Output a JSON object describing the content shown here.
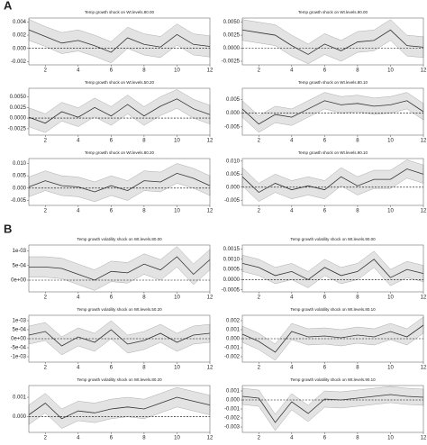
{
  "section_labels": [
    "A",
    "B"
  ],
  "chart_data": [
    {
      "type": "line",
      "title": "Temp growth shock on Wt.levels.80.00",
      "x": [
        1,
        2,
        3,
        4,
        5,
        6,
        7,
        8,
        9,
        10,
        11,
        12
      ],
      "values": [
        0.0028,
        0.0018,
        0.0008,
        0.0012,
        0.0004,
        -0.0006,
        0.0016,
        0.0006,
        0.0002,
        0.0021,
        0.0006,
        0.0003
      ],
      "lower": [
        0.0012,
        0.0003,
        -0.0008,
        -0.0004,
        -0.0012,
        -0.0022,
        0,
        -0.001,
        -0.0014,
        0.0005,
        -0.001,
        -0.0013
      ],
      "upper": [
        0.0044,
        0.0033,
        0.0024,
        0.0028,
        0.002,
        0.001,
        0.0032,
        0.0022,
        0.0018,
        0.0037,
        0.0022,
        0.0019
      ],
      "xlim": [
        1,
        12
      ],
      "xticks": [
        2,
        4,
        6,
        8,
        10,
        12
      ],
      "ylim": [
        -0.0025,
        0.0046
      ],
      "yticks": [
        {
          "value": -0.002,
          "label": "-0.002"
        },
        {
          "value": 0,
          "label": "0.000"
        },
        {
          "value": 0.002,
          "label": "0.002"
        },
        {
          "value": 0.004,
          "label": "0.004"
        }
      ],
      "reference_line": 0,
      "color": "#333333",
      "band_color": "#e3e3e3"
    },
    {
      "type": "line",
      "title": "Temp growth shock on Wt.levels.90.00",
      "x": [
        1,
        2,
        3,
        4,
        5,
        6,
        7,
        8,
        9,
        10,
        11,
        12
      ],
      "values": [
        0.0035,
        0.003,
        0.0025,
        0.0005,
        -0.0012,
        0.0008,
        -0.0005,
        0.0012,
        0.0015,
        0.0035,
        0.0005,
        0.0002
      ],
      "lower": [
        0.0015,
        0.001,
        0.0005,
        -0.0015,
        -0.003,
        -0.0012,
        -0.0025,
        -0.0008,
        -0.0005,
        0.0015,
        -0.0015,
        -0.0018
      ],
      "upper": [
        0.0055,
        0.005,
        0.0045,
        0.0025,
        0.0008,
        0.0028,
        0.0015,
        0.0032,
        0.0035,
        0.0055,
        0.0025,
        0.0022
      ],
      "xlim": [
        1,
        12
      ],
      "xticks": [
        2,
        4,
        6,
        8,
        10,
        12
      ],
      "ylim": [
        -0.0032,
        0.0058
      ],
      "yticks": [
        -0.0025,
        {
          "value": 0,
          "label": "0.0000"
        },
        0.0025,
        {
          "value": 0.005,
          "label": "0.0050"
        }
      ],
      "reference_line": 0,
      "color": "#333333",
      "band_color": "#e3e3e3"
    },
    {
      "type": "line",
      "title": "Temp growth shock on Wt.levels.50.20",
      "x": [
        1,
        2,
        3,
        4,
        5,
        6,
        7,
        8,
        9,
        10,
        11,
        12
      ],
      "values": [
        0.0002,
        -0.0012,
        0.0015,
        0.0002,
        0.0025,
        0.0005,
        0.0032,
        0.0005,
        0.0028,
        0.0045,
        0.0022,
        0.0008
      ],
      "lower": [
        -0.002,
        -0.0034,
        -0.0007,
        -0.002,
        0.0003,
        -0.0017,
        0.001,
        -0.0017,
        0.0006,
        0.0023,
        0,
        -0.0014
      ],
      "upper": [
        0.0024,
        0.001,
        0.0037,
        0.0024,
        0.0047,
        0.0027,
        0.0054,
        0.0027,
        0.005,
        0.0067,
        0.0044,
        0.003
      ],
      "xlim": [
        1,
        12
      ],
      "xticks": [
        2,
        4,
        6,
        8,
        10,
        12
      ],
      "ylim": [
        -0.004,
        0.007
      ],
      "yticks": [
        -0.0025,
        {
          "value": 0,
          "label": "0.0000"
        },
        0.0025,
        {
          "value": 0.005,
          "label": "0.0050"
        }
      ],
      "reference_line": 0,
      "color": "#333333",
      "band_color": "#e3e3e3"
    },
    {
      "type": "line",
      "title": "Temp growth shock on Wt.levels.80.10",
      "x": [
        1,
        2,
        3,
        4,
        5,
        6,
        7,
        8,
        9,
        10,
        11,
        12
      ],
      "values": [
        0.0015,
        -0.004,
        -0.0005,
        -0.0015,
        0.0015,
        0.0045,
        0.003,
        0.0035,
        0.0025,
        0.003,
        0.0045,
        0.0005
      ],
      "lower": [
        -0.0015,
        -0.007,
        -0.0035,
        -0.0045,
        -0.0015,
        0.0015,
        0,
        0.0005,
        -0.0005,
        0,
        0.0015,
        -0.0025
      ],
      "upper": [
        0.0045,
        -0.001,
        0.0025,
        0.0015,
        0.0045,
        0.0075,
        0.006,
        0.0065,
        0.0055,
        0.006,
        0.0075,
        0.0035
      ],
      "xlim": [
        1,
        12
      ],
      "xticks": [
        2,
        4,
        6,
        8,
        10,
        12
      ],
      "ylim": [
        -0.008,
        0.009
      ],
      "yticks": [
        -0.005,
        {
          "value": 0,
          "label": "0.000"
        },
        0.005
      ],
      "reference_line": 0,
      "color": "#333333",
      "band_color": "#e3e3e3"
    },
    {
      "type": "line",
      "title": "Temp growth shock on Wt.levels.80.20",
      "x": [
        1,
        2,
        3,
        4,
        5,
        6,
        7,
        8,
        9,
        10,
        11,
        12
      ],
      "values": [
        0.0005,
        0.003,
        0.001,
        0.0005,
        -0.0015,
        0.001,
        -0.001,
        0.003,
        0.0025,
        0.006,
        0.004,
        0.001
      ],
      "lower": [
        -0.0035,
        -0.001,
        -0.003,
        -0.0035,
        -0.0055,
        -0.003,
        -0.005,
        -0.001,
        -0.0015,
        0.002,
        0,
        -0.003
      ],
      "upper": [
        0.0045,
        0.007,
        0.005,
        0.0045,
        0.0025,
        0.005,
        0.003,
        0.007,
        0.0065,
        0.01,
        0.008,
        0.005
      ],
      "xlim": [
        1,
        12
      ],
      "xticks": [
        2,
        4,
        6,
        8,
        10,
        12
      ],
      "ylim": [
        -0.007,
        0.012
      ],
      "yticks": [
        -0.005,
        {
          "value": 0,
          "label": "0.000"
        },
        0.005,
        {
          "value": 0.01,
          "label": "0.010"
        }
      ],
      "reference_line": 0,
      "color": "#333333",
      "band_color": "#e3e3e3"
    },
    {
      "type": "line",
      "title": "Temp growth shock on Wt.levels.90.10",
      "x": [
        1,
        2,
        3,
        4,
        5,
        6,
        7,
        8,
        9,
        10,
        11,
        12
      ],
      "values": [
        0.004,
        -0.002,
        0.0015,
        -0.001,
        0.0005,
        -0.001,
        0.004,
        0.0005,
        0.003,
        0.003,
        0.007,
        0.005
      ],
      "lower": [
        0.0005,
        -0.0055,
        -0.002,
        -0.0045,
        -0.003,
        -0.0045,
        0.0005,
        -0.003,
        -0.0005,
        -0.0005,
        0.0035,
        0.0015
      ],
      "upper": [
        0.0075,
        0.0015,
        0.005,
        0.0025,
        0.004,
        0.0025,
        0.0075,
        0.004,
        0.0065,
        0.0065,
        0.0105,
        0.0085
      ],
      "xlim": [
        1,
        12
      ],
      "xticks": [
        2,
        4,
        6,
        8,
        10,
        12
      ],
      "ylim": [
        -0.007,
        0.011
      ],
      "yticks": [
        -0.005,
        {
          "value": 0,
          "label": "0.000"
        },
        0.005,
        {
          "value": 0.01,
          "label": "0.010"
        }
      ],
      "reference_line": 0,
      "color": "#333333",
      "band_color": "#e3e3e3"
    },
    {
      "type": "line",
      "title": "Temp growth volatility shock on Wt.levels.80.00",
      "x": [
        1,
        2,
        3,
        4,
        5,
        6,
        7,
        8,
        9,
        10,
        11,
        12
      ],
      "values": [
        0.00045,
        0.00045,
        0.0004,
        0.0002,
        0,
        0.0003,
        0.00025,
        0.00055,
        0.00035,
        0.0008,
        0.0002,
        0.0007
      ],
      "lower": [
        0.0001,
        0.0001,
        5e-05,
        -0.00015,
        -0.00035,
        -5e-05,
        -0.0001,
        0.0002,
        0,
        0.00045,
        -0.00015,
        0.00035
      ],
      "upper": [
        0.0008,
        0.0008,
        0.00075,
        0.00055,
        0.00035,
        0.00065,
        0.0006,
        0.0009,
        0.0007,
        0.00115,
        0.00055,
        0.00105
      ],
      "xlim": [
        1,
        12
      ],
      "xticks": [
        2,
        4,
        6,
        8,
        10,
        12
      ],
      "ylim": [
        -0.0004,
        0.0012
      ],
      "yticks": [
        {
          "value": 0,
          "label": "0e+00"
        },
        {
          "value": 0.0005,
          "label": "5e-04"
        },
        {
          "value": 0.001,
          "label": "1e-03"
        }
      ],
      "reference_line": 0,
      "color": "#333333",
      "band_color": "#e3e3e3"
    },
    {
      "type": "line",
      "title": "Temp growth volatility shock on Wt.levels.90.00",
      "x": [
        1,
        2,
        3,
        4,
        5,
        6,
        7,
        8,
        9,
        10,
        11,
        12
      ],
      "values": [
        0.0008,
        0.0006,
        0.0002,
        0.0004,
        0,
        0.0006,
        0.0002,
        0.0004,
        0.001,
        0.0001,
        0.0005,
        0.0003
      ],
      "lower": [
        0.0004,
        0.0002,
        -0.0002,
        0,
        -0.0004,
        0.0002,
        -0.0002,
        0,
        0.0006,
        -0.0003,
        0.0001,
        -0.0001
      ],
      "upper": [
        0.0012,
        0.001,
        0.0006,
        0.0008,
        0.0004,
        0.001,
        0.0006,
        0.0008,
        0.0014,
        0.0005,
        0.0009,
        0.0007
      ],
      "xlim": [
        1,
        12
      ],
      "xticks": [
        2,
        4,
        6,
        8,
        10,
        12
      ],
      "ylim": [
        -0.0006,
        0.0017
      ],
      "yticks": [
        -0.0005,
        {
          "value": 0,
          "label": "0.0000"
        },
        0.0005,
        {
          "value": 0.001,
          "label": "0.0010"
        },
        0.0015
      ],
      "reference_line": 0,
      "color": "#333333",
      "band_color": "#e3e3e3"
    },
    {
      "type": "line",
      "title": "Temp growth volatility shock on Wt.levels.50.20",
      "x": [
        1,
        2,
        3,
        4,
        5,
        6,
        7,
        8,
        9,
        10,
        11,
        12
      ],
      "values": [
        0.0002,
        0.0004,
        -0.0004,
        0.0001,
        -0.0002,
        0.0005,
        -0.0003,
        -0.0001,
        0.0003,
        -0.0002,
        0.0002,
        0.0003
      ],
      "lower": [
        -0.0003,
        -0.0001,
        -0.0009,
        -0.0004,
        -0.0007,
        0,
        -0.0008,
        -0.0006,
        -0.0002,
        -0.0007,
        -0.0003,
        -0.0002
      ],
      "upper": [
        0.0007,
        0.0009,
        0.0001,
        0.0006,
        0.0003,
        0.001,
        0.0002,
        0.0004,
        0.0008,
        0.0003,
        0.0007,
        0.0008
      ],
      "xlim": [
        1,
        12
      ],
      "xticks": [
        2,
        4,
        6,
        8,
        10,
        12
      ],
      "ylim": [
        -0.0013,
        0.0013
      ],
      "yticks": [
        {
          "value": -0.001,
          "label": "-1e-03"
        },
        {
          "value": -0.0005,
          "label": "-5e-04"
        },
        {
          "value": 0,
          "label": "0e+00"
        },
        {
          "value": 0.0005,
          "label": "5e-04"
        },
        {
          "value": 0.001,
          "label": "1e-03"
        }
      ],
      "reference_line": 0,
      "color": "#333333",
      "band_color": "#e3e3e3"
    },
    {
      "type": "line",
      "title": "Temp growth volatility shock on Wt.levels.80.10",
      "x": [
        1,
        2,
        3,
        4,
        5,
        6,
        7,
        8,
        9,
        10,
        11,
        12
      ],
      "values": [
        0.0005,
        -0.0003,
        -0.0015,
        0.0008,
        0.0002,
        0.0003,
        0.0001,
        0.0004,
        0.0002,
        0.0008,
        0.0002,
        0.0015
      ],
      "lower": [
        -0.0004,
        -0.0012,
        -0.0024,
        -0.0001,
        -0.0007,
        -0.0006,
        -0.0008,
        -0.0005,
        -0.0007,
        -0.0001,
        -0.0007,
        0.0006
      ],
      "upper": [
        0.0014,
        0.0006,
        -0.0006,
        0.0017,
        0.0011,
        0.0012,
        0.001,
        0.0013,
        0.0011,
        0.0017,
        0.0011,
        0.0024
      ],
      "xlim": [
        1,
        12
      ],
      "xticks": [
        2,
        4,
        6,
        8,
        10,
        12
      ],
      "ylim": [
        -0.0026,
        0.0026
      ],
      "yticks": [
        -0.002,
        -0.001,
        {
          "value": 0,
          "label": "0.000"
        },
        0.001,
        0.002
      ],
      "reference_line": 0,
      "color": "#333333",
      "band_color": "#e3e3e3"
    },
    {
      "type": "line",
      "title": "Temp growth volatility shock on Wt.levels.80.20",
      "x": [
        1,
        2,
        3,
        4,
        5,
        6,
        7,
        8,
        9,
        10,
        11,
        12
      ],
      "values": [
        0.0001,
        0.0007,
        -0.0001,
        0.0003,
        0.0002,
        0.0004,
        0.0005,
        0.0004,
        0.0007,
        0.001,
        0.0008,
        0.0006
      ],
      "lower": [
        -0.0004,
        0.0002,
        -0.0006,
        -0.0002,
        -0.0003,
        -0.0001,
        0,
        -0.0001,
        0.0002,
        0.0005,
        0.0003,
        0.0001
      ],
      "upper": [
        0.0006,
        0.0012,
        0.0004,
        0.0008,
        0.0007,
        0.0009,
        0.001,
        0.0009,
        0.0012,
        0.0015,
        0.0013,
        0.0011
      ],
      "xlim": [
        1,
        12
      ],
      "xticks": [
        2,
        4,
        6,
        8,
        10,
        12
      ],
      "ylim": [
        -0.0008,
        0.0016
      ],
      "yticks": [
        {
          "value": 0,
          "label": "0.000"
        },
        0.001
      ],
      "reference_line": 0,
      "color": "#333333",
      "band_color": "#e3e3e3"
    },
    {
      "type": "line",
      "title": "Temp growth volatility shock on Wt.levels.90.10",
      "x": [
        1,
        2,
        3,
        4,
        5,
        6,
        7,
        8,
        9,
        10,
        11,
        12
      ],
      "values": [
        0.0004,
        0.0002,
        -0.0025,
        -0.0002,
        -0.0015,
        0.0001,
        0,
        0.0002,
        0.0004,
        0.0006,
        0.0004,
        0.0003
      ],
      "lower": [
        -0.0005,
        -0.0007,
        -0.0034,
        -0.0011,
        -0.0024,
        -0.0008,
        -0.0009,
        -0.0007,
        -0.0005,
        -0.0003,
        -0.0005,
        -0.0006
      ],
      "upper": [
        0.0013,
        0.0011,
        -0.0016,
        0.0007,
        -0.0006,
        0.001,
        0.0009,
        0.0011,
        0.0013,
        0.0015,
        0.0013,
        0.0012
      ],
      "xlim": [
        1,
        12
      ],
      "xticks": [
        2,
        4,
        6,
        8,
        10,
        12
      ],
      "ylim": [
        -0.0036,
        0.0016
      ],
      "yticks": [
        -0.003,
        -0.002,
        -0.001,
        {
          "value": 0,
          "label": "0.000"
        },
        0.001
      ],
      "reference_line": 0,
      "color": "#333333",
      "band_color": "#e3e3e3"
    }
  ]
}
